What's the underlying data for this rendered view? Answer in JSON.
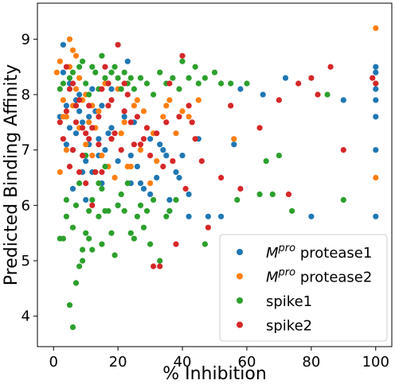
{
  "chart_data": {
    "type": "scatter",
    "xlabel": "% Inhibition",
    "ylabel": "Predicted Binding Affinity",
    "xlim": [
      -5,
      105
    ],
    "ylim": [
      3.45,
      9.65
    ],
    "xticks": [
      "0",
      "20",
      "40",
      "60",
      "80",
      "100"
    ],
    "yticks": [
      "4",
      "5",
      "6",
      "7",
      "8",
      "9"
    ],
    "legend_position": "bottom-right",
    "series": [
      {
        "name": "M<sup>pro</sup> protease1",
        "legend_base": "M",
        "legend_sup": "pro",
        "legend_rest": " protease1",
        "color": "#1f77b4",
        "points": [
          [
            2,
            7.6
          ],
          [
            3,
            8.9
          ],
          [
            4,
            7.8
          ],
          [
            5,
            7.4
          ],
          [
            6,
            7.0
          ],
          [
            7,
            7.3
          ],
          [
            8,
            8.0
          ],
          [
            9,
            7.5
          ],
          [
            10,
            6.8
          ],
          [
            11,
            7.1
          ],
          [
            12,
            6.6
          ],
          [
            13,
            7.7
          ],
          [
            14,
            7.2
          ],
          [
            15,
            6.4
          ],
          [
            16,
            7.0
          ],
          [
            18,
            7.4
          ],
          [
            20,
            6.0
          ],
          [
            22,
            7.6
          ],
          [
            24,
            6.9
          ],
          [
            26,
            6.7
          ],
          [
            28,
            6.3
          ],
          [
            30,
            7.2
          ],
          [
            32,
            6.5
          ],
          [
            34,
            7.0
          ],
          [
            35,
            6.9
          ],
          [
            36,
            5.9
          ],
          [
            38,
            6.6
          ],
          [
            40,
            6.9
          ],
          [
            42,
            6.2
          ],
          [
            45,
            7.2
          ],
          [
            48,
            5.8
          ],
          [
            52,
            5.8
          ],
          [
            56,
            7.1
          ],
          [
            58,
            8.1
          ],
          [
            65,
            8.0
          ],
          [
            72,
            8.3
          ],
          [
            80,
            5.8
          ],
          [
            90,
            7.9
          ],
          [
            100,
            8.5
          ],
          [
            100,
            8.4
          ],
          [
            100,
            7.9
          ],
          [
            100,
            7.6
          ],
          [
            100,
            7.0
          ],
          [
            100,
            5.8
          ],
          [
            100,
            8.1
          ],
          [
            3,
            8.4
          ],
          [
            5,
            8.2
          ],
          [
            7,
            7.9
          ],
          [
            9,
            6.6
          ],
          [
            12,
            8.1
          ],
          [
            15,
            7.8
          ],
          [
            17,
            7.3
          ],
          [
            20,
            6.8
          ],
          [
            25,
            7.5
          ],
          [
            27,
            6.4
          ],
          [
            33,
            7.1
          ],
          [
            39,
            6.5
          ],
          [
            14,
            6.9
          ],
          [
            6,
            6.3
          ],
          [
            8,
            7.7
          ],
          [
            11,
            7.6
          ],
          [
            4,
            7.1
          ],
          [
            18,
            8.1
          ],
          [
            23,
            8.6
          ],
          [
            30,
            6.2
          ],
          [
            36,
            6.1
          ],
          [
            42,
            5.8
          ],
          [
            10,
            6.1
          ],
          [
            24,
            6.4
          ]
        ]
      },
      {
        "name": "M<sup>pro</sup> protease2",
        "legend_base": "M",
        "legend_sup": "pro",
        "legend_rest": " protease2",
        "color": "#ff7f0e",
        "points": [
          [
            1,
            8.4
          ],
          [
            2,
            8.6
          ],
          [
            3,
            7.9
          ],
          [
            4,
            7.6
          ],
          [
            5,
            8.5
          ],
          [
            6,
            8.8
          ],
          [
            7,
            8.1
          ],
          [
            8,
            7.4
          ],
          [
            9,
            7.9
          ],
          [
            10,
            7.1
          ],
          [
            11,
            7.5
          ],
          [
            12,
            6.9
          ],
          [
            14,
            7.7
          ],
          [
            16,
            8.2
          ],
          [
            17,
            6.7
          ],
          [
            19,
            6.5
          ],
          [
            21,
            7.3
          ],
          [
            23,
            6.7
          ],
          [
            25,
            7.8
          ],
          [
            27,
            7.0
          ],
          [
            30,
            6.4
          ],
          [
            32,
            6.8
          ],
          [
            35,
            7.8
          ],
          [
            38,
            7.3
          ],
          [
            40,
            7.7
          ],
          [
            45,
            7.9
          ],
          [
            56,
            7.2
          ],
          [
            100,
            9.2
          ],
          [
            100,
            6.5
          ],
          [
            2,
            6.6
          ],
          [
            4,
            7.0
          ],
          [
            6,
            7.8
          ],
          [
            8,
            8.3
          ],
          [
            10,
            8.0
          ],
          [
            13,
            7.4
          ],
          [
            15,
            6.9
          ],
          [
            18,
            7.2
          ],
          [
            20,
            8.1
          ],
          [
            22,
            7.5
          ],
          [
            26,
            7.9
          ],
          [
            28,
            7.7
          ],
          [
            31,
            7.3
          ],
          [
            34,
            7.6
          ],
          [
            36,
            7.9
          ],
          [
            42,
            7.6
          ],
          [
            5,
            9.0
          ],
          [
            7,
            8.7
          ],
          [
            3,
            7.6
          ],
          [
            12,
            7.8
          ],
          [
            24,
            6.7
          ]
        ]
      },
      {
        "name": "spike1",
        "legend_base": "spike1",
        "legend_sup": "",
        "legend_rest": "",
        "color": "#2ca02c",
        "points": [
          [
            2,
            8.1
          ],
          [
            3,
            5.4
          ],
          [
            4,
            5.8
          ],
          [
            5,
            4.2
          ],
          [
            6,
            3.8
          ],
          [
            7,
            4.6
          ],
          [
            8,
            4.9
          ],
          [
            9,
            5.2
          ],
          [
            10,
            5.5
          ],
          [
            11,
            5.9
          ],
          [
            12,
            6.1
          ],
          [
            14,
            5.8
          ],
          [
            15,
            5.3
          ],
          [
            16,
            5.9
          ],
          [
            18,
            5.5
          ],
          [
            20,
            6.0
          ],
          [
            22,
            5.9
          ],
          [
            24,
            5.5
          ],
          [
            26,
            5.8
          ],
          [
            28,
            5.6
          ],
          [
            30,
            5.3
          ],
          [
            33,
            5.0
          ],
          [
            35,
            5.8
          ],
          [
            38,
            6.1
          ],
          [
            40,
            8.6
          ],
          [
            42,
            8.3
          ],
          [
            45,
            8.2
          ],
          [
            50,
            8.4
          ],
          [
            55,
            8.2
          ],
          [
            60,
            8.2
          ],
          [
            66,
            6.8
          ],
          [
            68,
            6.2
          ],
          [
            70,
            6.9
          ],
          [
            74,
            5.9
          ],
          [
            85,
            8.0
          ],
          [
            90,
            6.1
          ],
          [
            3,
            8.2
          ],
          [
            5,
            8.3
          ],
          [
            6,
            8.4
          ],
          [
            8,
            8.5
          ],
          [
            9,
            8.6
          ],
          [
            10,
            8.2
          ],
          [
            11,
            8.0
          ],
          [
            12,
            8.5
          ],
          [
            13,
            8.4
          ],
          [
            14,
            8.1
          ],
          [
            15,
            8.7
          ],
          [
            16,
            8.3
          ],
          [
            17,
            8.2
          ],
          [
            18,
            8.4
          ],
          [
            19,
            8.5
          ],
          [
            20,
            8.3
          ],
          [
            21,
            8.1
          ],
          [
            22,
            8.4
          ],
          [
            23,
            8.2
          ],
          [
            24,
            8.3
          ],
          [
            25,
            8.1
          ],
          [
            27,
            8.3
          ],
          [
            29,
            8.2
          ],
          [
            31,
            8.0
          ],
          [
            33,
            8.4
          ],
          [
            35,
            8.2
          ],
          [
            37,
            8.3
          ],
          [
            39,
            8.1
          ],
          [
            44,
            8.5
          ],
          [
            47,
            8.3
          ],
          [
            52,
            8.2
          ],
          [
            4,
            6.1
          ],
          [
            6,
            5.6
          ],
          [
            8,
            6.4
          ],
          [
            9,
            5.0
          ],
          [
            11,
            5.4
          ],
          [
            13,
            6.6
          ],
          [
            15,
            6.3
          ],
          [
            17,
            5.9
          ],
          [
            19,
            5.1
          ],
          [
            21,
            6.2
          ],
          [
            23,
            6.4
          ],
          [
            25,
            5.4
          ],
          [
            27,
            6.0
          ],
          [
            29,
            5.9
          ],
          [
            31,
            6.1
          ],
          [
            36,
            5.9
          ],
          [
            7,
            6.0
          ],
          [
            12,
            5.2
          ],
          [
            47,
            5.3
          ],
          [
            57,
            6.1
          ],
          [
            64,
            6.2
          ],
          [
            14,
            6.4
          ],
          [
            10,
            6.9
          ],
          [
            16,
            6.7
          ],
          [
            2,
            5.4
          ]
        ]
      },
      {
        "name": "spike2",
        "legend_base": "spike2",
        "legend_sup": "",
        "legend_rest": "",
        "color": "#d62728",
        "points": [
          [
            2,
            7.5
          ],
          [
            3,
            7.2
          ],
          [
            4,
            7.7
          ],
          [
            5,
            6.7
          ],
          [
            6,
            7.0
          ],
          [
            7,
            7.5
          ],
          [
            8,
            7.9
          ],
          [
            9,
            6.9
          ],
          [
            10,
            7.3
          ],
          [
            11,
            7.8
          ],
          [
            12,
            7.4
          ],
          [
            13,
            6.6
          ],
          [
            14,
            7.1
          ],
          [
            15,
            8.1
          ],
          [
            16,
            8.5
          ],
          [
            17,
            7.8
          ],
          [
            18,
            7.2
          ],
          [
            20,
            8.9
          ],
          [
            22,
            7.7
          ],
          [
            24,
            7.5
          ],
          [
            26,
            7.6
          ],
          [
            28,
            7.2
          ],
          [
            30,
            6.9
          ],
          [
            32,
            7.3
          ],
          [
            35,
            7.5
          ],
          [
            38,
            5.3
          ],
          [
            40,
            8.7
          ],
          [
            42,
            7.8
          ],
          [
            44,
            7.2
          ],
          [
            46,
            6.8
          ],
          [
            48,
            5.6
          ],
          [
            52,
            6.5
          ],
          [
            55,
            7.8
          ],
          [
            58,
            6.3
          ],
          [
            64,
            7.4
          ],
          [
            70,
            7.9
          ],
          [
            73,
            6.2
          ],
          [
            76,
            8.2
          ],
          [
            80,
            8.3
          ],
          [
            82,
            8.0
          ],
          [
            86,
            8.5
          ],
          [
            90,
            7.0
          ],
          [
            99,
            8.3
          ],
          [
            100,
            8.2
          ],
          [
            4,
            8.5
          ],
          [
            6,
            8.2
          ],
          [
            8,
            6.6
          ],
          [
            9,
            7.4
          ],
          [
            12,
            6.0
          ],
          [
            15,
            6.6
          ],
          [
            18,
            7.9
          ],
          [
            21,
            7.0
          ],
          [
            23,
            8.0
          ],
          [
            27,
            7.1
          ],
          [
            31,
            4.9
          ],
          [
            33,
            4.9
          ],
          [
            36,
            8.2
          ],
          [
            37,
            6.8
          ],
          [
            39,
            7.6
          ],
          [
            43,
            7.5
          ],
          [
            7,
            7.8
          ],
          [
            10,
            6.4
          ],
          [
            14,
            7.6
          ],
          [
            19,
            7.3
          ],
          [
            25,
            7.1
          ],
          [
            29,
            7.4
          ],
          [
            34,
            6.7
          ],
          [
            41,
            6.3
          ],
          [
            5,
            8.1
          ],
          [
            11,
            7.2
          ],
          [
            17,
            8.2
          ],
          [
            22,
            8.2
          ]
        ]
      }
    ]
  }
}
